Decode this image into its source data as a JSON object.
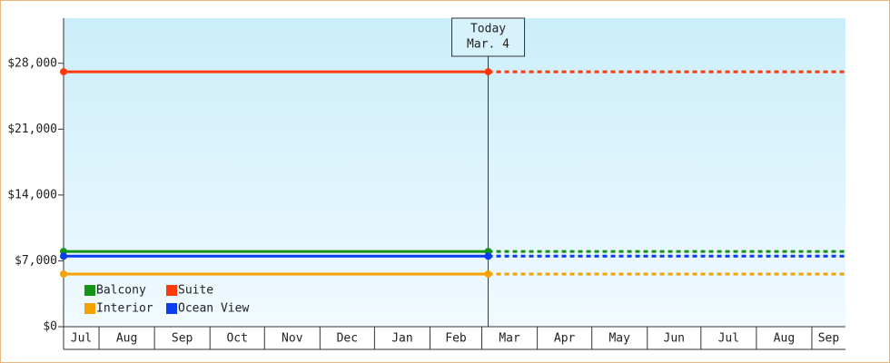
{
  "chart_data": {
    "type": "line",
    "annotation": {
      "lines": [
        "Today",
        "Mar. 4"
      ],
      "x": 233.5
    },
    "x": [
      0,
      233.5
    ],
    "xlim": [
      0,
      430
    ],
    "month_bands": [
      {
        "label": "Jul",
        "start": 0
      },
      {
        "label": "Aug",
        "start": 19.5
      },
      {
        "label": "Sep",
        "start": 50
      },
      {
        "label": "Oct",
        "start": 80.5
      },
      {
        "label": "Nov",
        "start": 110.5
      },
      {
        "label": "Dec",
        "start": 141
      },
      {
        "label": "Jan",
        "start": 171
      },
      {
        "label": "Feb",
        "start": 201.5
      },
      {
        "label": "Mar",
        "start": 230
      },
      {
        "label": "Apr",
        "start": 260.5
      },
      {
        "label": "May",
        "start": 290.5
      },
      {
        "label": "Jun",
        "start": 321
      },
      {
        "label": "Jul",
        "start": 350.5
      },
      {
        "label": "Aug",
        "start": 381
      },
      {
        "label": "Sep",
        "start": 411.5
      }
    ],
    "ylim": [
      0,
      32800
    ],
    "yticks": [
      {
        "value": 0,
        "label": "$0"
      },
      {
        "value": 7000,
        "label": "$7,000"
      },
      {
        "value": 14000,
        "label": "$14,000"
      },
      {
        "value": 21000,
        "label": "$21,000"
      },
      {
        "value": 28000,
        "label": "$28,000"
      }
    ],
    "series": [
      {
        "name": "Balcony",
        "color": "#169416",
        "values": [
          8000,
          8000
        ]
      },
      {
        "name": "Suite",
        "color": "#ff3a0a",
        "values": [
          27100,
          27100
        ]
      },
      {
        "name": "Interior",
        "color": "#f5a100",
        "values": [
          5600,
          5600
        ]
      },
      {
        "name": "Ocean View",
        "color": "#0a3cf0",
        "values": [
          7500,
          7500
        ]
      }
    ],
    "projection": "dashed",
    "legend": "bottom-left"
  }
}
